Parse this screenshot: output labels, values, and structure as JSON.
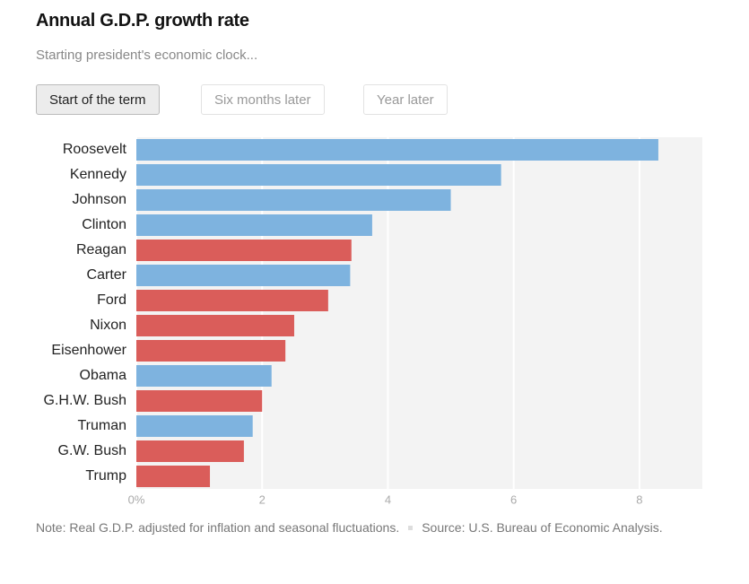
{
  "chart_data": {
    "type": "bar",
    "orientation": "horizontal",
    "title": "Annual G.D.P. growth rate",
    "subtitle": "Starting president's economic clock...",
    "buttons": [
      "Start of the term",
      "Six months later",
      "Year later"
    ],
    "categories": [
      "Roosevelt",
      "Kennedy",
      "Johnson",
      "Clinton",
      "Reagan",
      "Carter",
      "Ford",
      "Nixon",
      "Eisenhower",
      "Obama",
      "G.H.W. Bush",
      "Truman",
      "G.W. Bush",
      "Trump"
    ],
    "values": [
      8.3,
      5.8,
      5.0,
      3.75,
      3.42,
      3.4,
      3.05,
      2.51,
      2.37,
      2.15,
      2.0,
      1.85,
      1.71,
      1.17
    ],
    "colors": [
      "#7eb3df",
      "#7eb3df",
      "#7eb3df",
      "#7eb3df",
      "#da5d5a",
      "#7eb3df",
      "#da5d5a",
      "#da5d5a",
      "#da5d5a",
      "#7eb3df",
      "#da5d5a",
      "#7eb3df",
      "#da5d5a",
      "#da5d5a"
    ],
    "xlim": [
      0,
      9
    ],
    "xticks": [
      {
        "value": 0,
        "label": "0%"
      },
      2,
      4,
      6,
      8
    ],
    "grid": true,
    "note": "Note: Real G.D.P. adjusted for inflation and seasonal fluctuations.",
    "source": "Source: U.S. Bureau of Economic Analysis."
  }
}
